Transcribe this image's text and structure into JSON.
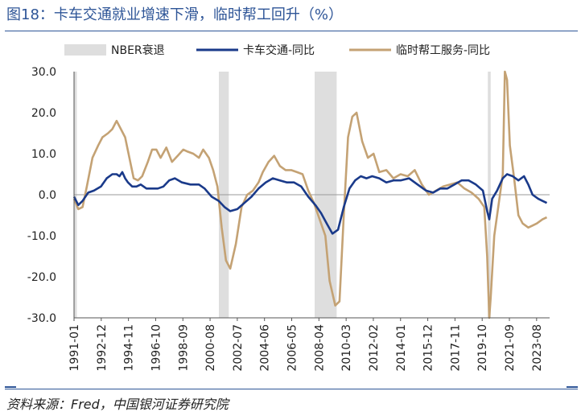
{
  "header": {
    "title": "图18：卡车交通就业增速下滑，临时帮工回升（%）"
  },
  "footer": {
    "source": "资料来源：Fred，中国银河证券研究院"
  },
  "colors": {
    "recession": "#dedede",
    "truck": "#1a3a8a",
    "temp": "#c4a274",
    "accent": "#2e5597"
  },
  "chart_data": {
    "type": "line",
    "title": "图18：卡车交通就业增速下滑，临时帮工回升（%）",
    "ylim": [
      -30,
      30
    ],
    "yticks": [
      "30.0",
      "20.0",
      "10.0",
      "0.0",
      "-10.0",
      "-20.0",
      "-30.0"
    ],
    "ytick_values": [
      30,
      20,
      10,
      0,
      -10,
      -20,
      -30
    ],
    "xlim": [
      1991.0,
      2024.5
    ],
    "xticks": [
      "1991-01",
      "1992-12",
      "1994-11",
      "1996-10",
      "1998-09",
      "2000-08",
      "2002-07",
      "2004-06",
      "2006-05",
      "2008-04",
      "2010-03",
      "2012-02",
      "2014-01",
      "2015-12",
      "2017-11",
      "2019-10",
      "2021-09",
      "2023-08"
    ],
    "xtick_values": [
      1991.0,
      1992.917,
      1994.833,
      1996.75,
      1998.667,
      2000.583,
      2002.5,
      2004.417,
      2006.333,
      2008.25,
      2010.167,
      2012.083,
      2014.0,
      2015.917,
      2017.833,
      2019.75,
      2021.667,
      2023.583
    ],
    "legend": [
      "NBER衰退",
      "卡车交通-同比",
      "临时帮工服务-同比"
    ],
    "legend_position": "top",
    "recessions": [
      [
        1991.0,
        1991.2
      ],
      [
        2001.2,
        2001.9
      ],
      [
        2007.95,
        2009.5
      ],
      [
        2020.15,
        2020.35
      ]
    ],
    "series": [
      {
        "name": "卡车交通-同比",
        "x": [
          1991.0,
          1991.3,
          1991.6,
          1992.0,
          1992.4,
          1992.9,
          1993.3,
          1993.7,
          1994.0,
          1994.2,
          1994.4,
          1994.6,
          1994.8,
          1995.1,
          1995.4,
          1995.7,
          1996.1,
          1996.5,
          1996.9,
          1997.3,
          1997.7,
          1998.1,
          1998.6,
          1999.2,
          1999.8,
          2000.2,
          2000.7,
          2001.2,
          2001.6,
          2002.0,
          2002.5,
          2003.0,
          2003.5,
          2004.0,
          2004.5,
          2005.0,
          2005.5,
          2006.0,
          2006.5,
          2007.0,
          2007.5,
          2008.0,
          2008.4,
          2008.8,
          2009.2,
          2009.6,
          2010.0,
          2010.4,
          2010.8,
          2011.2,
          2011.6,
          2012.0,
          2012.5,
          2013.0,
          2013.5,
          2014.0,
          2014.6,
          2015.2,
          2015.8,
          2016.3,
          2016.8,
          2017.3,
          2017.8,
          2018.3,
          2018.8,
          2019.3,
          2019.8,
          2020.1,
          2020.25,
          2020.45,
          2020.8,
          2021.2,
          2021.5,
          2021.9,
          2022.3,
          2022.7,
          2023.0,
          2023.3,
          2023.7,
          2024.0,
          2024.3
        ],
        "y": [
          -0.5,
          -2.5,
          -1.5,
          0.5,
          1.0,
          2.0,
          4.0,
          5.0,
          5.0,
          4.5,
          5.5,
          4.0,
          3.0,
          2.0,
          2.0,
          2.5,
          1.5,
          1.5,
          1.5,
          2.0,
          3.5,
          4.0,
          3.0,
          2.5,
          2.5,
          1.5,
          -0.5,
          -1.5,
          -3.0,
          -4.0,
          -3.5,
          -2.0,
          -0.5,
          1.5,
          3.0,
          4.0,
          3.5,
          3.0,
          3.0,
          2.0,
          -0.5,
          -2.5,
          -4.5,
          -7.0,
          -9.5,
          -8.5,
          -3.0,
          1.5,
          3.5,
          4.5,
          4.0,
          4.5,
          4.0,
          3.0,
          3.5,
          3.5,
          4.0,
          2.5,
          1.0,
          0.5,
          1.5,
          1.5,
          2.5,
          3.5,
          3.5,
          2.5,
          1.0,
          -4.0,
          -6.0,
          -1.0,
          1.0,
          4.0,
          5.0,
          4.5,
          3.5,
          4.5,
          2.5,
          0.0,
          -1.0,
          -1.5,
          -2.0
        ]
      },
      {
        "name": "临时帮工服务-同比",
        "x": [
          1991.0,
          1991.3,
          1991.6,
          1991.9,
          1992.3,
          1992.7,
          1993.0,
          1993.4,
          1993.7,
          1994.0,
          1994.3,
          1994.6,
          1994.9,
          1995.2,
          1995.5,
          1995.8,
          1996.2,
          1996.5,
          1996.8,
          1997.1,
          1997.5,
          1997.9,
          1998.3,
          1998.7,
          1999.0,
          1999.4,
          1999.8,
          2000.1,
          2000.5,
          2000.8,
          2001.1,
          2001.4,
          2001.7,
          2002.0,
          2002.4,
          2002.8,
          2003.2,
          2003.6,
          2004.0,
          2004.3,
          2004.7,
          2005.1,
          2005.5,
          2005.9,
          2006.3,
          2006.7,
          2007.1,
          2007.5,
          2007.9,
          2008.3,
          2008.7,
          2009.0,
          2009.4,
          2009.7,
          2010.0,
          2010.3,
          2010.6,
          2010.9,
          2011.3,
          2011.7,
          2012.1,
          2012.5,
          2013.0,
          2013.5,
          2014.0,
          2014.5,
          2015.0,
          2015.5,
          2016.0,
          2016.5,
          2017.0,
          2017.5,
          2018.0,
          2018.5,
          2019.0,
          2019.5,
          2019.9,
          2020.1,
          2020.25,
          2020.35,
          2020.6,
          2021.0,
          2021.2,
          2021.35,
          2021.5,
          2021.7,
          2022.0,
          2022.3,
          2022.6,
          2023.0,
          2023.3,
          2023.6,
          2024.0,
          2024.3
        ],
        "y": [
          -1.0,
          -3.5,
          -3.0,
          2.0,
          9.0,
          12.0,
          14.0,
          15.0,
          16.0,
          18.0,
          16.0,
          14.0,
          9.0,
          4.0,
          3.5,
          4.5,
          8.0,
          11.0,
          11.0,
          9.0,
          11.5,
          8.0,
          9.5,
          11.0,
          10.5,
          10.0,
          9.0,
          11.0,
          9.0,
          6.0,
          2.0,
          -8.0,
          -16.0,
          -18.0,
          -12.0,
          -3.0,
          0.0,
          1.0,
          3.0,
          5.5,
          8.0,
          9.5,
          7.0,
          6.0,
          6.0,
          5.5,
          5.0,
          1.0,
          -2.0,
          -6.0,
          -10.0,
          -21.0,
          -27.0,
          -26.0,
          -5.0,
          14.0,
          19.0,
          20.0,
          13.0,
          9.0,
          10.0,
          5.5,
          6.0,
          4.0,
          5.0,
          4.5,
          6.0,
          2.5,
          0.0,
          1.0,
          2.0,
          2.5,
          3.0,
          1.5,
          0.5,
          -1.0,
          -3.0,
          -15.0,
          -30.0,
          -25.0,
          -10.0,
          0.0,
          5.0,
          32.0,
          28.0,
          12.0,
          4.0,
          -5.0,
          -7.0,
          -8.0,
          -7.5,
          -7.0,
          -6.0,
          -5.5
        ]
      }
    ]
  }
}
